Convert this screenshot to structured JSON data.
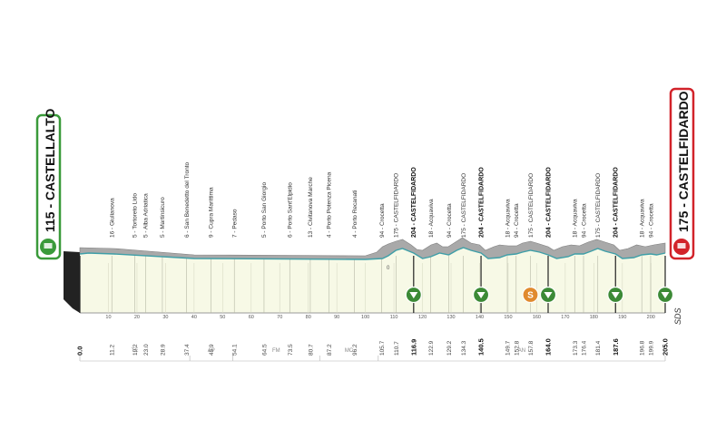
{
  "start": {
    "name": "115 - CASTELLALTO",
    "alt": 115,
    "color": "#3a9a3a"
  },
  "finish": {
    "name": "175 - CASTELFIDARDO",
    "alt": 175,
    "color": "#d2232a"
  },
  "colors": {
    "terrain": "#a9a9a9",
    "fill": "#f7f9e6",
    "route_line": "#3f9fa8",
    "sprint_marker": "#3c8a36",
    "kom_marker": "#e08a2e"
  },
  "km_ticks": [
    "10",
    "20",
    "30",
    "40",
    "50",
    "60",
    "70",
    "80",
    "90",
    "100",
    "110",
    "120",
    "130",
    "140",
    "150",
    "160",
    "170",
    "180",
    "190",
    "200"
  ],
  "points": [
    {
      "km": "0.0",
      "bold": true,
      "label": ""
    },
    {
      "km": "11.2",
      "bold": false,
      "label": "16 - Giulianova"
    },
    {
      "km": "19.2",
      "bold": false,
      "label": "5 - Tortoreto Lido"
    },
    {
      "km": "23.0",
      "bold": false,
      "label": "5 - Alba Adriatica"
    },
    {
      "km": "28.9",
      "bold": false,
      "label": "5 - Martinsicuro"
    },
    {
      "km": "37.4",
      "bold": false,
      "label": "6 - San Benedetto del Tronto"
    },
    {
      "km": "45.9",
      "bold": false,
      "label": "9 - Cupra Marittima"
    },
    {
      "km": "54.1",
      "bold": false,
      "label": "7 - Pedaso"
    },
    {
      "km": "64.5",
      "bold": false,
      "label": "5 - Porto San Giorgio"
    },
    {
      "km": "73.5",
      "bold": false,
      "label": "6 - Porto Sant'Elpidio"
    },
    {
      "km": "80.7",
      "bold": false,
      "label": "13 - Civitanova Marche"
    },
    {
      "km": "87.2",
      "bold": false,
      "label": "4 - Porto Potenza Picena"
    },
    {
      "km": "96.2",
      "bold": false,
      "label": "4 - Porto Recanati"
    },
    {
      "km": "105.7",
      "bold": false,
      "label": "94 - Crocetta"
    },
    {
      "km": "110.7",
      "bold": false,
      "label": "175 - CASTELFIDARDO"
    },
    {
      "km": "116.9",
      "bold": true,
      "label": "204 - CASTELFIDARDO"
    },
    {
      "km": "122.9",
      "bold": false,
      "label": "18 - Acquaviva"
    },
    {
      "km": "129.2",
      "bold": false,
      "label": "94 - Crocetta"
    },
    {
      "km": "134.3",
      "bold": false,
      "label": "175 - CASTELFIDARDO"
    },
    {
      "km": "140.5",
      "bold": true,
      "label": "204 - CASTELFIDARDO"
    },
    {
      "km": "149.7",
      "bold": false,
      "label": "18 - Acquaviva"
    },
    {
      "km": "152.8",
      "bold": false,
      "label": "94 - Crocetta"
    },
    {
      "km": "157.8",
      "bold": false,
      "label": "175 - CASTELFIDARDO"
    },
    {
      "km": "164.0",
      "bold": true,
      "label": "204 - CASTELFIDARDO"
    },
    {
      "km": "173.3",
      "bold": false,
      "label": "18 - Acquaviva"
    },
    {
      "km": "176.4",
      "bold": false,
      "label": "94 - Crocetta"
    },
    {
      "km": "181.4",
      "bold": false,
      "label": "175 - CASTELFIDARDO"
    },
    {
      "km": "187.6",
      "bold": true,
      "label": "204 - CASTELFIDARDO"
    },
    {
      "km": "196.8",
      "bold": false,
      "label": "18 - Acquaviva"
    },
    {
      "km": "199.9",
      "bold": false,
      "label": "94 - Crocetta"
    },
    {
      "km": "205.0",
      "bold": true,
      "label": ""
    }
  ],
  "provinces": [
    "TE",
    "AP",
    "FM",
    "MC",
    "AN"
  ],
  "elevation_mark": "0",
  "markers": [
    {
      "km": 116.9,
      "type": "sprint",
      "letter": ""
    },
    {
      "km": 140.5,
      "type": "sprint",
      "letter": ""
    },
    {
      "km": 157.8,
      "type": "kom",
      "letter": "S"
    },
    {
      "km": 164.0,
      "type": "sprint",
      "letter": ""
    },
    {
      "km": 187.6,
      "type": "sprint",
      "letter": ""
    },
    {
      "km": 205.0,
      "type": "sprint",
      "letter": ""
    }
  ],
  "logo": "SDS"
}
